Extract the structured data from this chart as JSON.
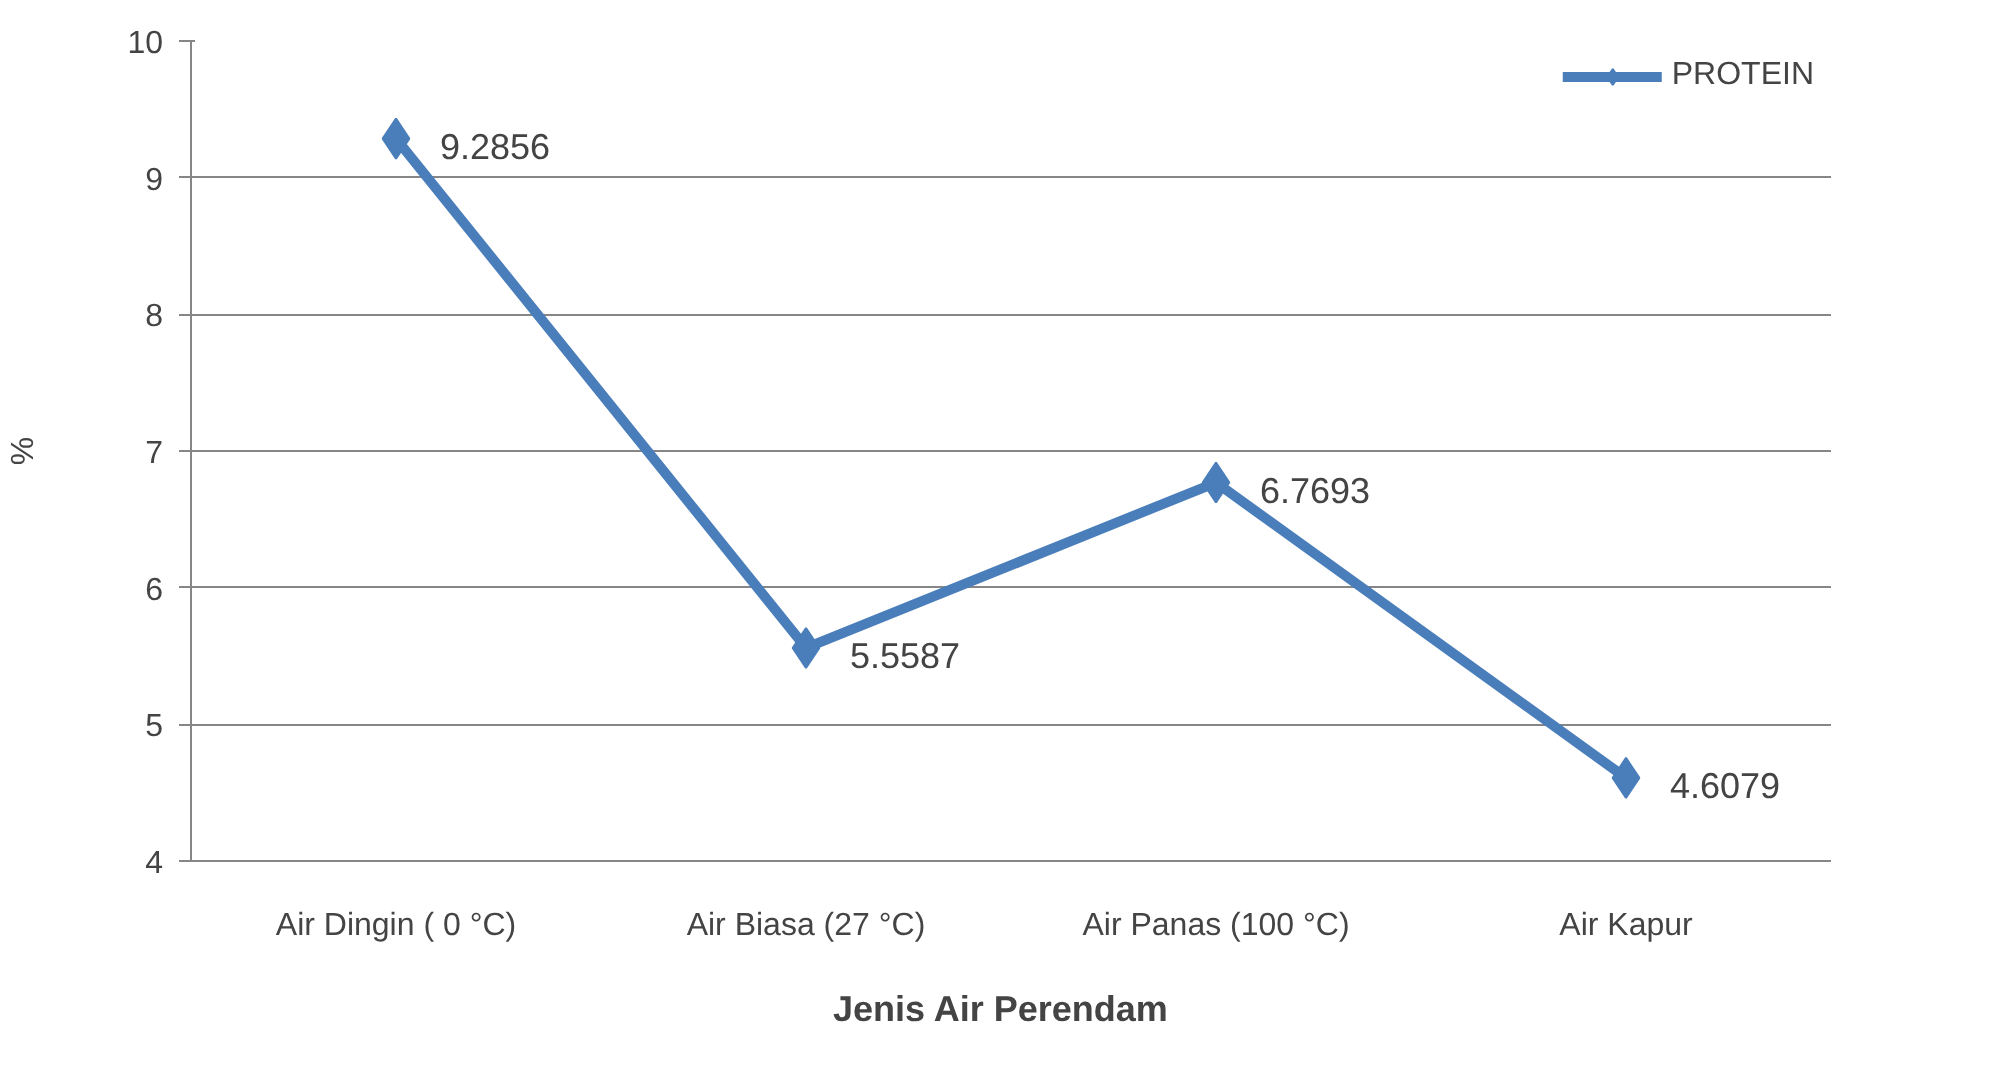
{
  "chart_data": {
    "type": "line",
    "xlabel": "Jenis  Air  Perendam",
    "ylabel": "%",
    "categories": [
      "Air Dingin ( 0 °C)",
      "Air Biasa (27 °C)",
      "Air Panas (100 °C)",
      "Air Kapur"
    ],
    "series": [
      {
        "name": "PROTEIN",
        "color": "#4a7ebb",
        "values": [
          9.2856,
          5.5587,
          6.7693,
          4.6079
        ]
      }
    ],
    "ylim": [
      4,
      10
    ],
    "yticks": [
      4,
      5,
      6,
      7,
      8,
      9,
      10
    ],
    "grid": "y",
    "legend": "top right",
    "marker": "diamond",
    "line_style": "solid",
    "data_labels": true
  }
}
